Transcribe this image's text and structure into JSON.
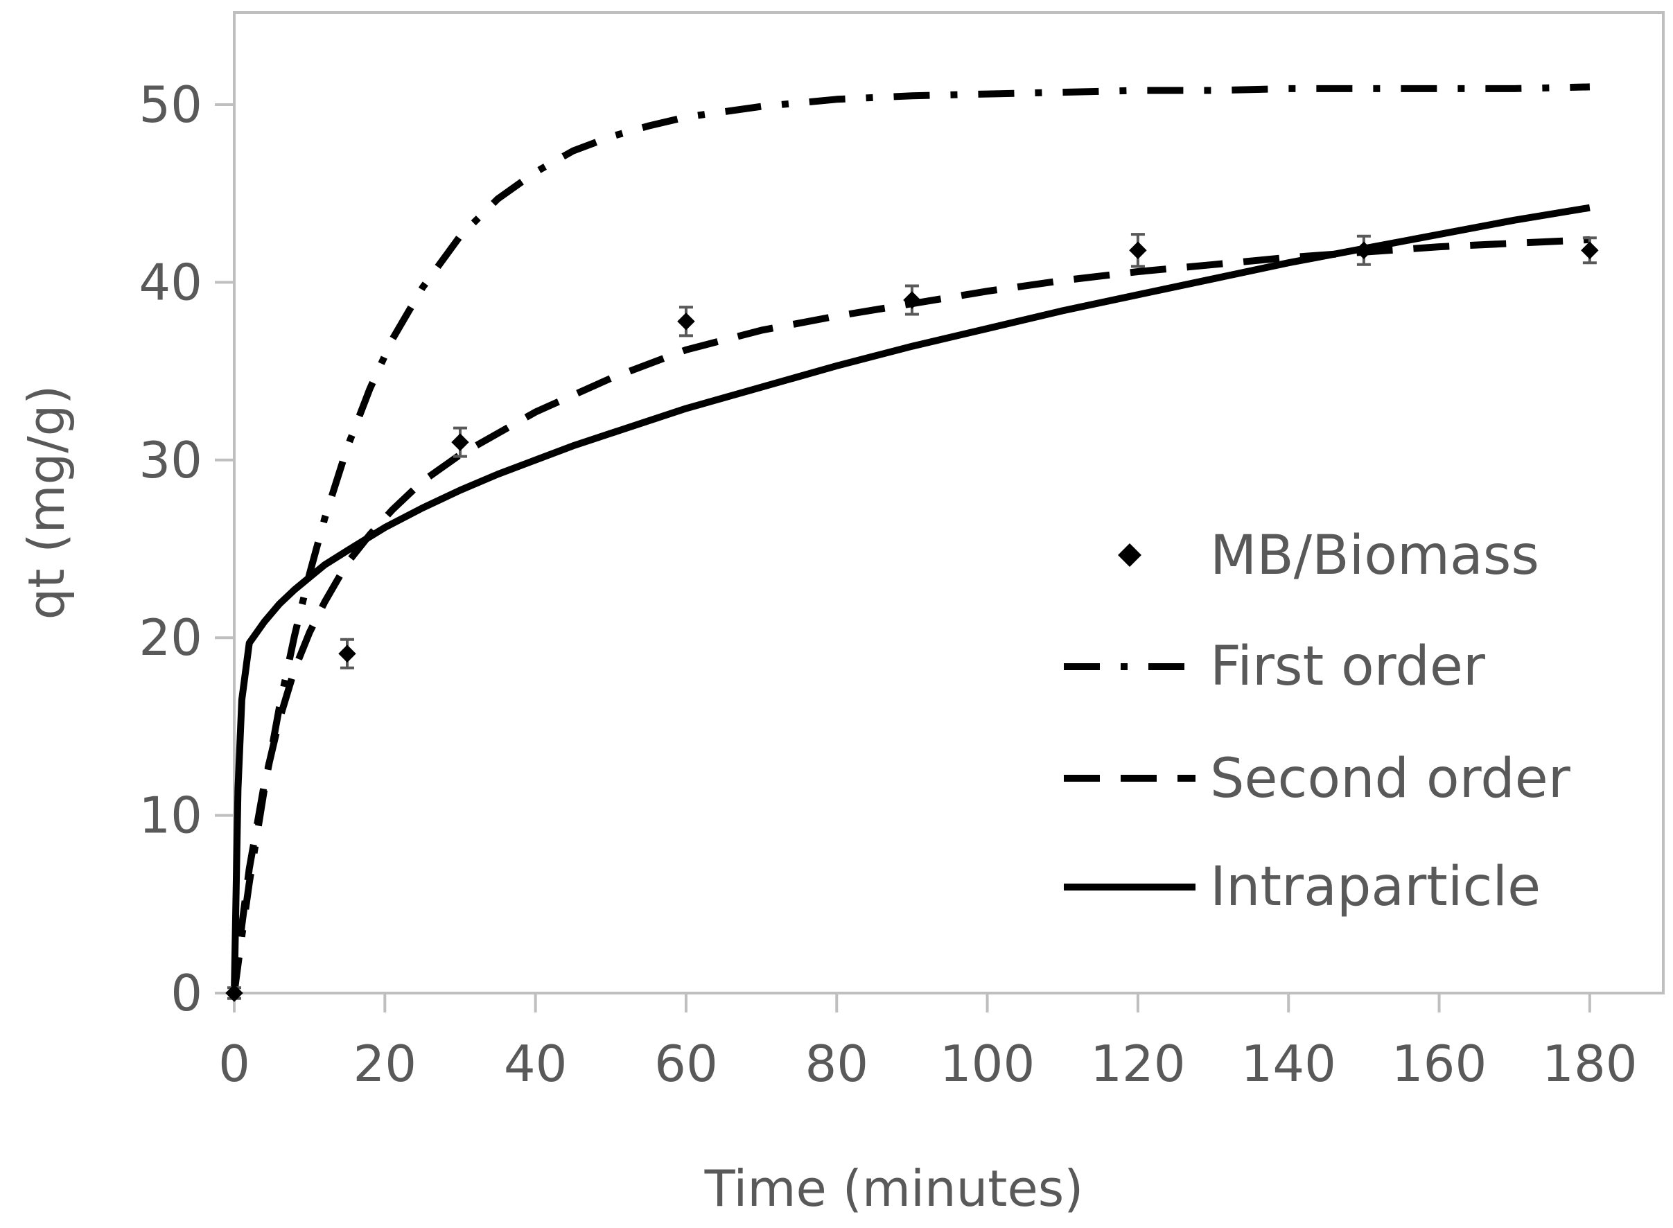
{
  "chart_data": {
    "type": "scatter",
    "title": "",
    "xlabel": "Time (minutes)",
    "ylabel": "qt (mg/g)",
    "xlim": [
      0,
      190
    ],
    "ylim": [
      0,
      55
    ],
    "xticks": [
      0,
      20,
      40,
      60,
      80,
      100,
      120,
      140,
      160,
      180
    ],
    "yticks": [
      0,
      10,
      20,
      30,
      40,
      50
    ],
    "grid": false,
    "legend_position": "right",
    "series": [
      {
        "name": "MB/Biomass",
        "kind": "points-with-error-bars",
        "x": [
          0,
          15,
          30,
          60,
          90,
          120,
          150,
          180
        ],
        "y": [
          0,
          19.1,
          31.0,
          37.8,
          39.0,
          41.8,
          41.8,
          41.8
        ],
        "error": [
          0.3,
          0.8,
          0.8,
          0.8,
          0.8,
          0.9,
          0.8,
          0.7
        ]
      },
      {
        "name": "First order",
        "kind": "line",
        "dash": "dash-dot",
        "x": [
          0,
          1,
          2,
          4,
          6,
          8,
          10,
          12,
          15,
          18,
          21,
          25,
          30,
          35,
          40,
          45,
          50,
          55,
          60,
          70,
          80,
          90,
          100,
          110,
          120,
          130,
          140,
          150,
          160,
          170,
          180
        ],
        "y": [
          0,
          3.2,
          6.2,
          11.5,
          16.1,
          20.1,
          23.6,
          26.7,
          30.7,
          34.0,
          36.8,
          39.7,
          42.6,
          44.7,
          46.2,
          47.4,
          48.2,
          48.8,
          49.3,
          49.9,
          50.3,
          50.5,
          50.6,
          50.7,
          50.8,
          50.8,
          50.9,
          50.9,
          50.9,
          50.9,
          51.0
        ]
      },
      {
        "name": "Second order",
        "kind": "line",
        "dash": "dash",
        "x": [
          0,
          1,
          2,
          4,
          6,
          8,
          10,
          12,
          15,
          18,
          21,
          25,
          30,
          40,
          50,
          60,
          70,
          80,
          90,
          100,
          110,
          120,
          130,
          140,
          150,
          160,
          170,
          180
        ],
        "y": [
          0,
          3.8,
          7.0,
          11.8,
          15.4,
          18.2,
          20.3,
          22.0,
          24.2,
          25.8,
          27.2,
          28.8,
          30.3,
          32.7,
          34.6,
          36.2,
          37.3,
          38.1,
          38.8,
          39.5,
          40.1,
          40.6,
          41.0,
          41.4,
          41.7,
          42.0,
          42.2,
          42.4
        ]
      },
      {
        "name": "Intraparticle",
        "kind": "line",
        "dash": "solid",
        "x": [
          0,
          0.5,
          1,
          2,
          4,
          6,
          8,
          10,
          12,
          15,
          20,
          25,
          30,
          35,
          40,
          45,
          50,
          60,
          70,
          80,
          90,
          100,
          110,
          120,
          130,
          140,
          150,
          160,
          170,
          180
        ],
        "y": [
          0,
          11.5,
          16.5,
          19.7,
          20.9,
          21.9,
          22.7,
          23.4,
          24.1,
          24.9,
          26.2,
          27.3,
          28.3,
          29.2,
          30.0,
          30.8,
          31.5,
          32.9,
          34.1,
          35.3,
          36.4,
          37.4,
          38.4,
          39.3,
          40.2,
          41.1,
          41.9,
          42.7,
          43.5,
          44.2
        ]
      }
    ]
  },
  "colors": {
    "frame": "#bfbfbf",
    "series": "#000000",
    "text": "#595959",
    "marker": "#000000",
    "error_bar": "#595959"
  }
}
